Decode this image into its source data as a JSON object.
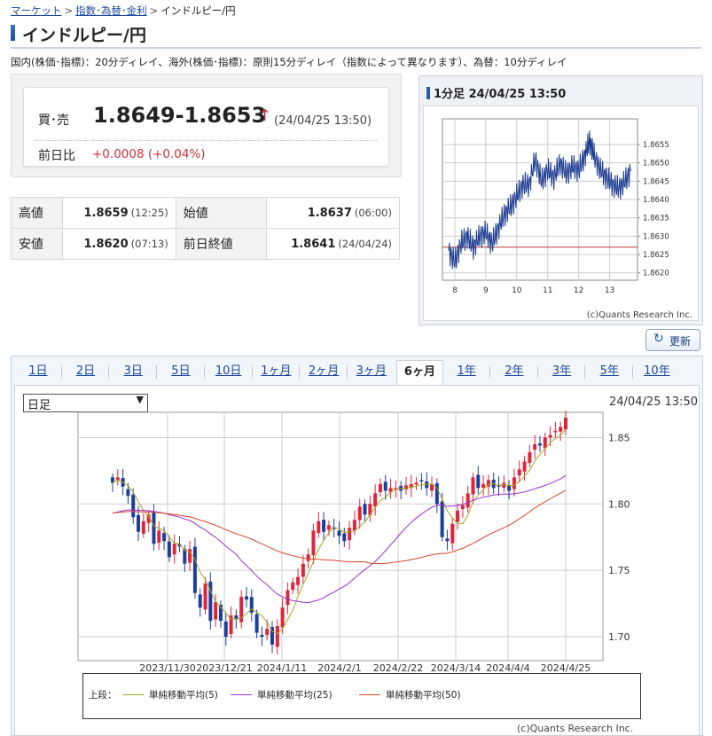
{
  "breadcrumb": {
    "market": "マーケット",
    "fx": "指数･為替･金利",
    "current": "インドルピー/円",
    "sep": ">"
  },
  "page_title": "インドルピー/円",
  "notice": "国内(株価･指標)：20分ディレイ、海外(株価･指標)：原則15分ディレイ（指数によって異なります）、為替：10分ディレイ",
  "quote": {
    "bid_label": "買･売",
    "bid_value": "1.8649-1.8653",
    "arrow": "↑",
    "time": "(24/04/25 13:50)",
    "change_label": "前日比",
    "change_value": "+0.0008 (+0.04%)"
  },
  "stats": {
    "high_label": "高値",
    "high_value": "1.8659",
    "high_time": "(12:25)",
    "open_label": "始値",
    "open_value": "1.8637",
    "open_time": "(06:00)",
    "low_label": "安値",
    "low_value": "1.8620",
    "low_time": "(07:13)",
    "prev_label": "前日終値",
    "prev_value": "1.8641",
    "prev_time": "(24/04/24)"
  },
  "mini_chart": {
    "header": "1分足 24/04/25 13:50",
    "credit": "(c)Quants Research Inc.",
    "chart_data": {
      "type": "line",
      "x_ticks": [
        "8",
        "9",
        "10",
        "11",
        "12",
        "13"
      ],
      "y_ticks": [
        "1.8655",
        "1.8650",
        "1.8645",
        "1.8640",
        "1.8635",
        "1.8630",
        "1.8625",
        "1.8620"
      ],
      "ylim": [
        1.8618,
        1.8662
      ],
      "x_range": [
        7.6,
        13.9
      ],
      "reference_line": 1.8627,
      "points": [
        [
          7.8,
          1.8626
        ],
        [
          8.0,
          1.8623
        ],
        [
          8.2,
          1.8628
        ],
        [
          8.4,
          1.863
        ],
        [
          8.6,
          1.8627
        ],
        [
          8.8,
          1.863
        ],
        [
          9.0,
          1.8631
        ],
        [
          9.2,
          1.8628
        ],
        [
          9.4,
          1.8632
        ],
        [
          9.6,
          1.8636
        ],
        [
          9.8,
          1.8638
        ],
        [
          10.0,
          1.8641
        ],
        [
          10.2,
          1.8644
        ],
        [
          10.4,
          1.8644
        ],
        [
          10.6,
          1.8651
        ],
        [
          10.8,
          1.8645
        ],
        [
          11.0,
          1.8648
        ],
        [
          11.2,
          1.8646
        ],
        [
          11.4,
          1.865
        ],
        [
          11.6,
          1.8647
        ],
        [
          11.8,
          1.8649
        ],
        [
          12.0,
          1.8648
        ],
        [
          12.2,
          1.8652
        ],
        [
          12.35,
          1.8656
        ],
        [
          12.5,
          1.8652
        ],
        [
          12.7,
          1.8648
        ],
        [
          12.9,
          1.8646
        ],
        [
          13.1,
          1.8644
        ],
        [
          13.3,
          1.8643
        ],
        [
          13.5,
          1.8645
        ],
        [
          13.7,
          1.8648
        ]
      ],
      "line_color": "#1a3a8f",
      "ref_color": "#c0392b"
    }
  },
  "refresh_label": "更新",
  "tabs": [
    "1日",
    "2日",
    "3日",
    "5日",
    "10日",
    "1ヶ月",
    "2ヶ月",
    "3ヶ月",
    "6ヶ月",
    "1年",
    "2年",
    "3年",
    "5年",
    "10年"
  ],
  "active_tab": "6ヶ月",
  "main_chart": {
    "period_select": "日足",
    "time": "24/04/25 13:50",
    "legend_title": "上段：",
    "credit": "(c)Quants Research Inc.",
    "chart_data": {
      "type": "candlestick",
      "x_ticks": [
        "2023/11/30",
        "2023/12/21",
        "2024/1/11",
        "2024/2/1",
        "2024/2/22",
        "2024/3/14",
        "2024/4/4",
        "2024/4/25"
      ],
      "y_ticks": [
        "1.85",
        "1.80",
        "1.75",
        "1.70"
      ],
      "ylim": [
        1.682,
        1.869
      ],
      "closes": [
        1.816,
        1.82,
        1.813,
        1.806,
        1.79,
        1.779,
        1.787,
        1.792,
        1.77,
        1.78,
        1.772,
        1.76,
        1.77,
        1.768,
        1.755,
        1.766,
        1.733,
        1.722,
        1.74,
        1.712,
        1.726,
        1.712,
        1.7,
        1.716,
        1.713,
        1.73,
        1.728,
        1.718,
        1.703,
        1.7,
        1.706,
        1.694,
        1.708,
        1.722,
        1.735,
        1.741,
        1.745,
        1.755,
        1.762,
        1.78,
        1.787,
        1.779,
        1.784,
        1.781,
        1.776,
        1.772,
        1.782,
        1.788,
        1.798,
        1.792,
        1.8,
        1.808,
        1.815,
        1.81,
        1.812,
        1.812,
        1.81,
        1.814,
        1.815,
        1.816,
        1.817,
        1.812,
        1.815,
        1.8,
        1.775,
        1.772,
        1.785,
        1.795,
        1.799,
        1.808,
        1.82,
        1.812,
        1.815,
        1.818,
        1.812,
        1.813,
        1.816,
        1.81,
        1.82,
        1.826,
        1.832,
        1.839,
        1.845,
        1.844,
        1.85,
        1.852,
        1.855,
        1.858,
        1.865
      ],
      "series": [
        {
          "name": "単純移動平均(5)",
          "color": "#a6a820"
        },
        {
          "name": "単純移動平均(25)",
          "color": "#9b30d0"
        },
        {
          "name": "単純移動平均(50)",
          "color": "#d8452a"
        }
      ],
      "up_color": "#e0253a",
      "down_color": "#1e3f99"
    }
  }
}
